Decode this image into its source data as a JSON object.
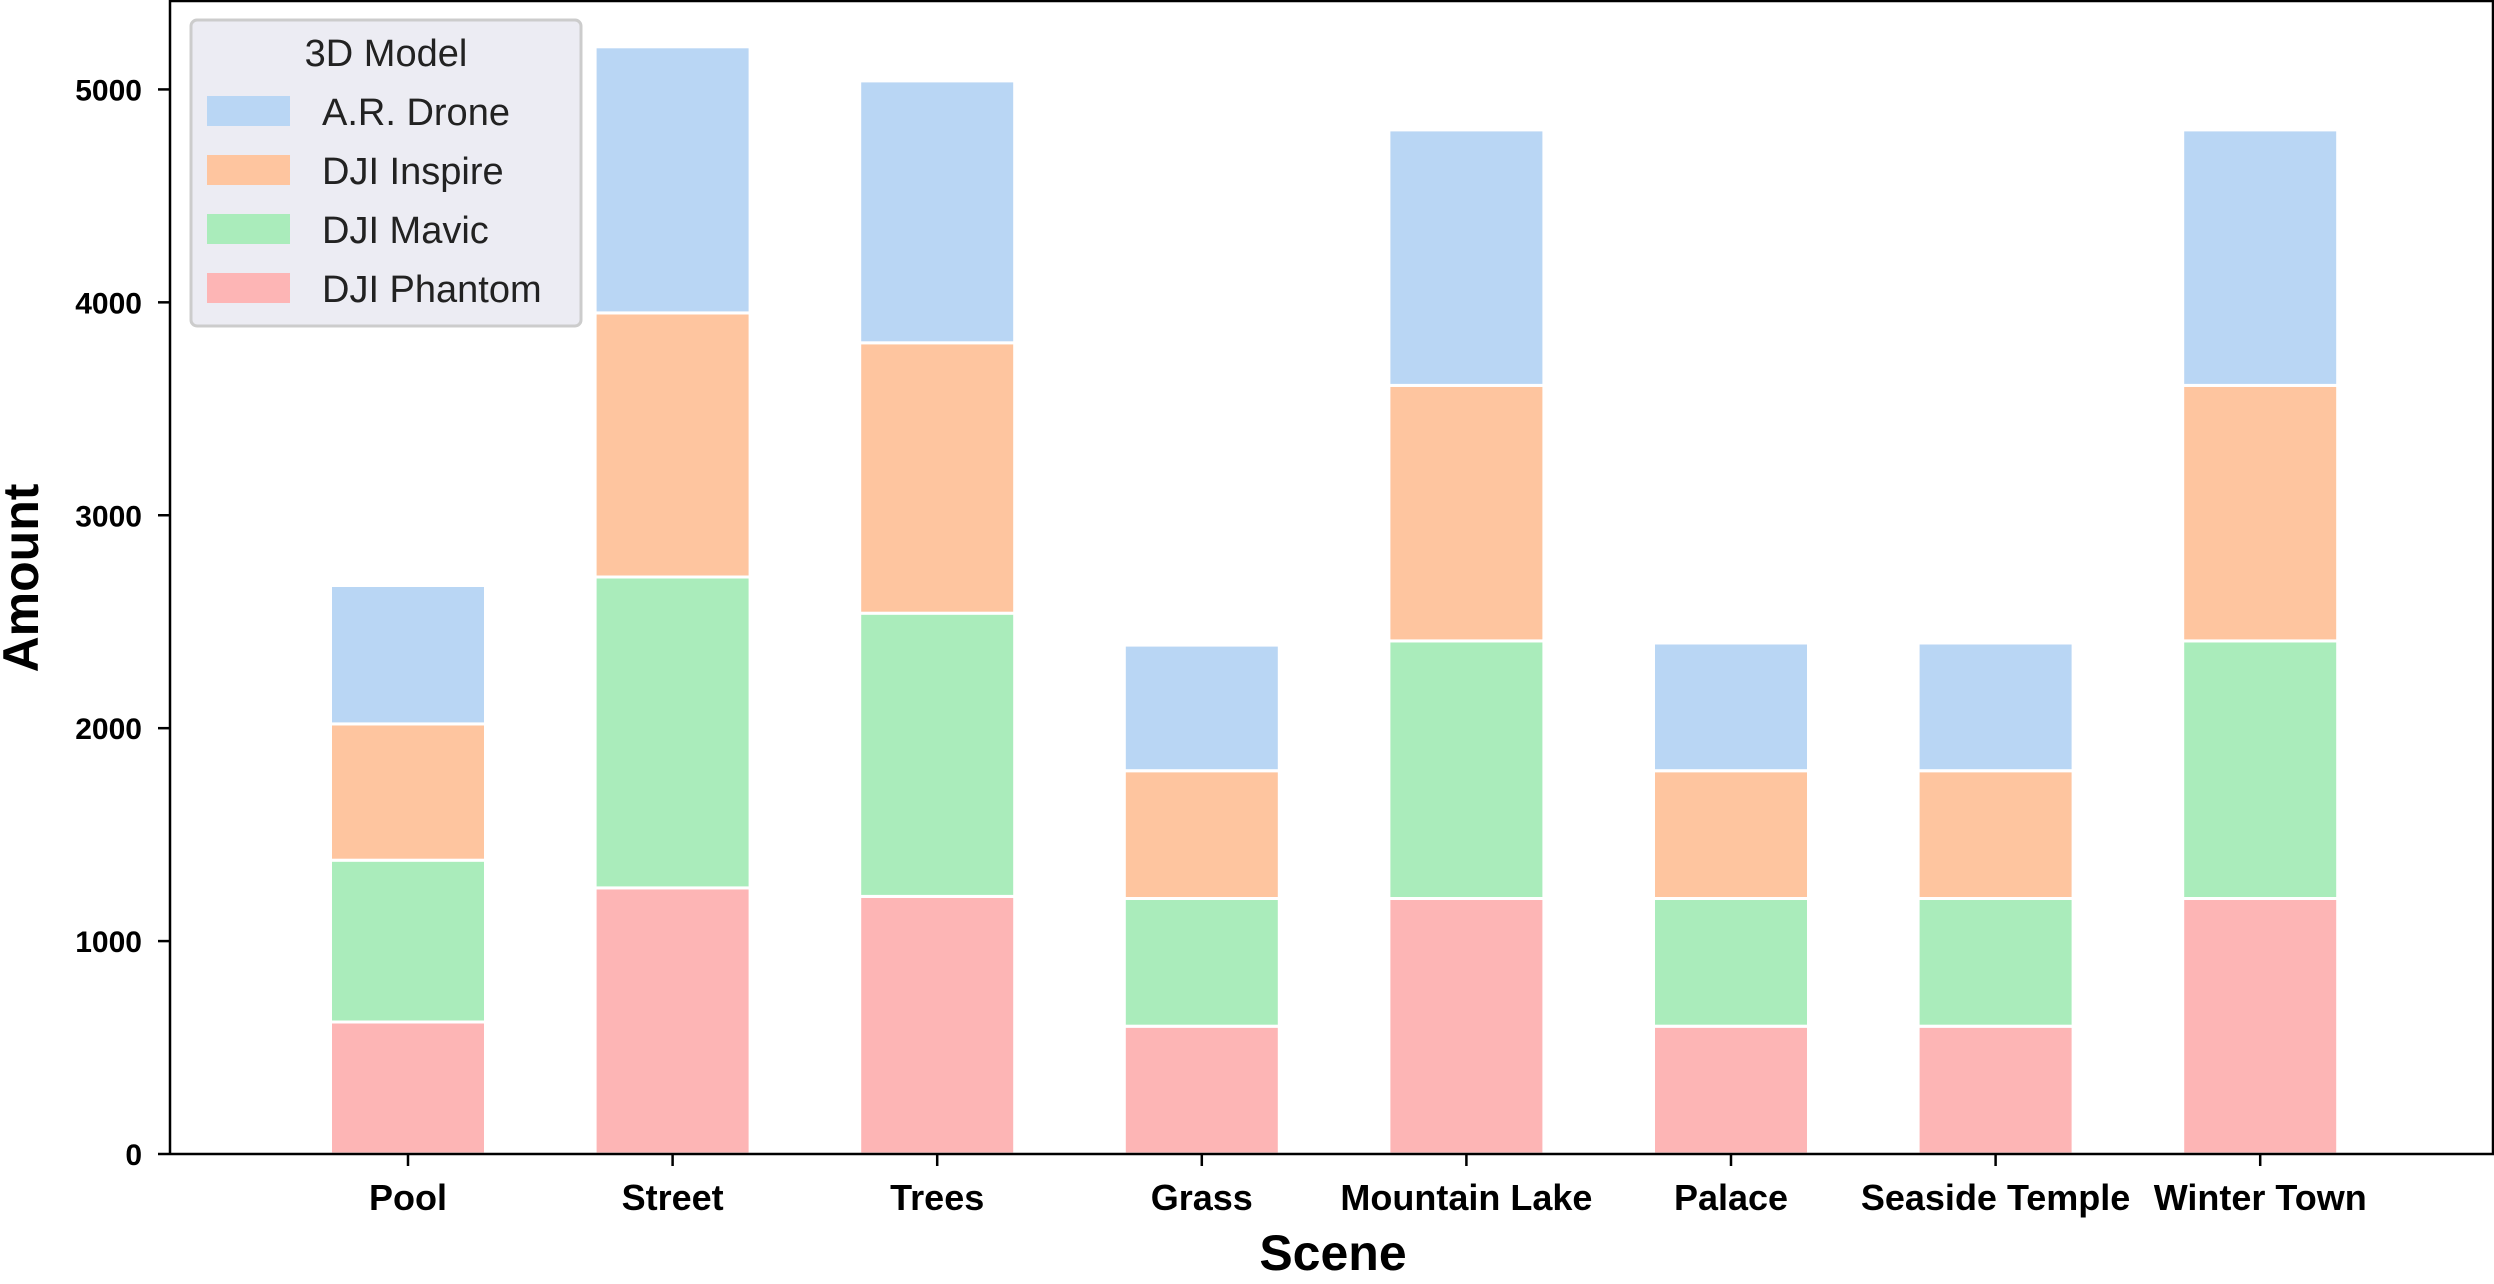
{
  "chart_data": {
    "type": "bar",
    "stacked": true,
    "title": "",
    "xlabel": "Scene",
    "ylabel": "Amount",
    "categories": [
      "Pool",
      "Street",
      "Trees",
      "Grass",
      "Mountain Lake",
      "Palace",
      "Seaside Temple",
      "Winter Town"
    ],
    "series": [
      {
        "name": "DJI Phantom",
        "color": "#fdb5b5",
        "values": [
          620,
          1250,
          1210,
          600,
          1200,
          600,
          600,
          1200
        ]
      },
      {
        "name": "DJI Mavic",
        "color": "#aaecbb",
        "values": [
          760,
          1460,
          1330,
          600,
          1210,
          600,
          600,
          1210
        ]
      },
      {
        "name": "DJI Inspire",
        "color": "#fec59f",
        "values": [
          640,
          1240,
          1270,
          600,
          1200,
          600,
          600,
          1200
        ]
      },
      {
        "name": "A.R. Drone",
        "color": "#b9d6f4",
        "values": [
          650,
          1250,
          1230,
          590,
          1200,
          600,
          600,
          1200
        ]
      }
    ],
    "ylim": [
      0,
      5420
    ],
    "yticks": [
      0,
      1000,
      2000,
      3000,
      4000,
      5000
    ],
    "grid": false,
    "legend": {
      "title": "3D Model",
      "placement": "top-left",
      "entries": [
        "A.R. Drone",
        "DJI Inspire",
        "DJI Mavic",
        "DJI Phantom"
      ]
    }
  }
}
